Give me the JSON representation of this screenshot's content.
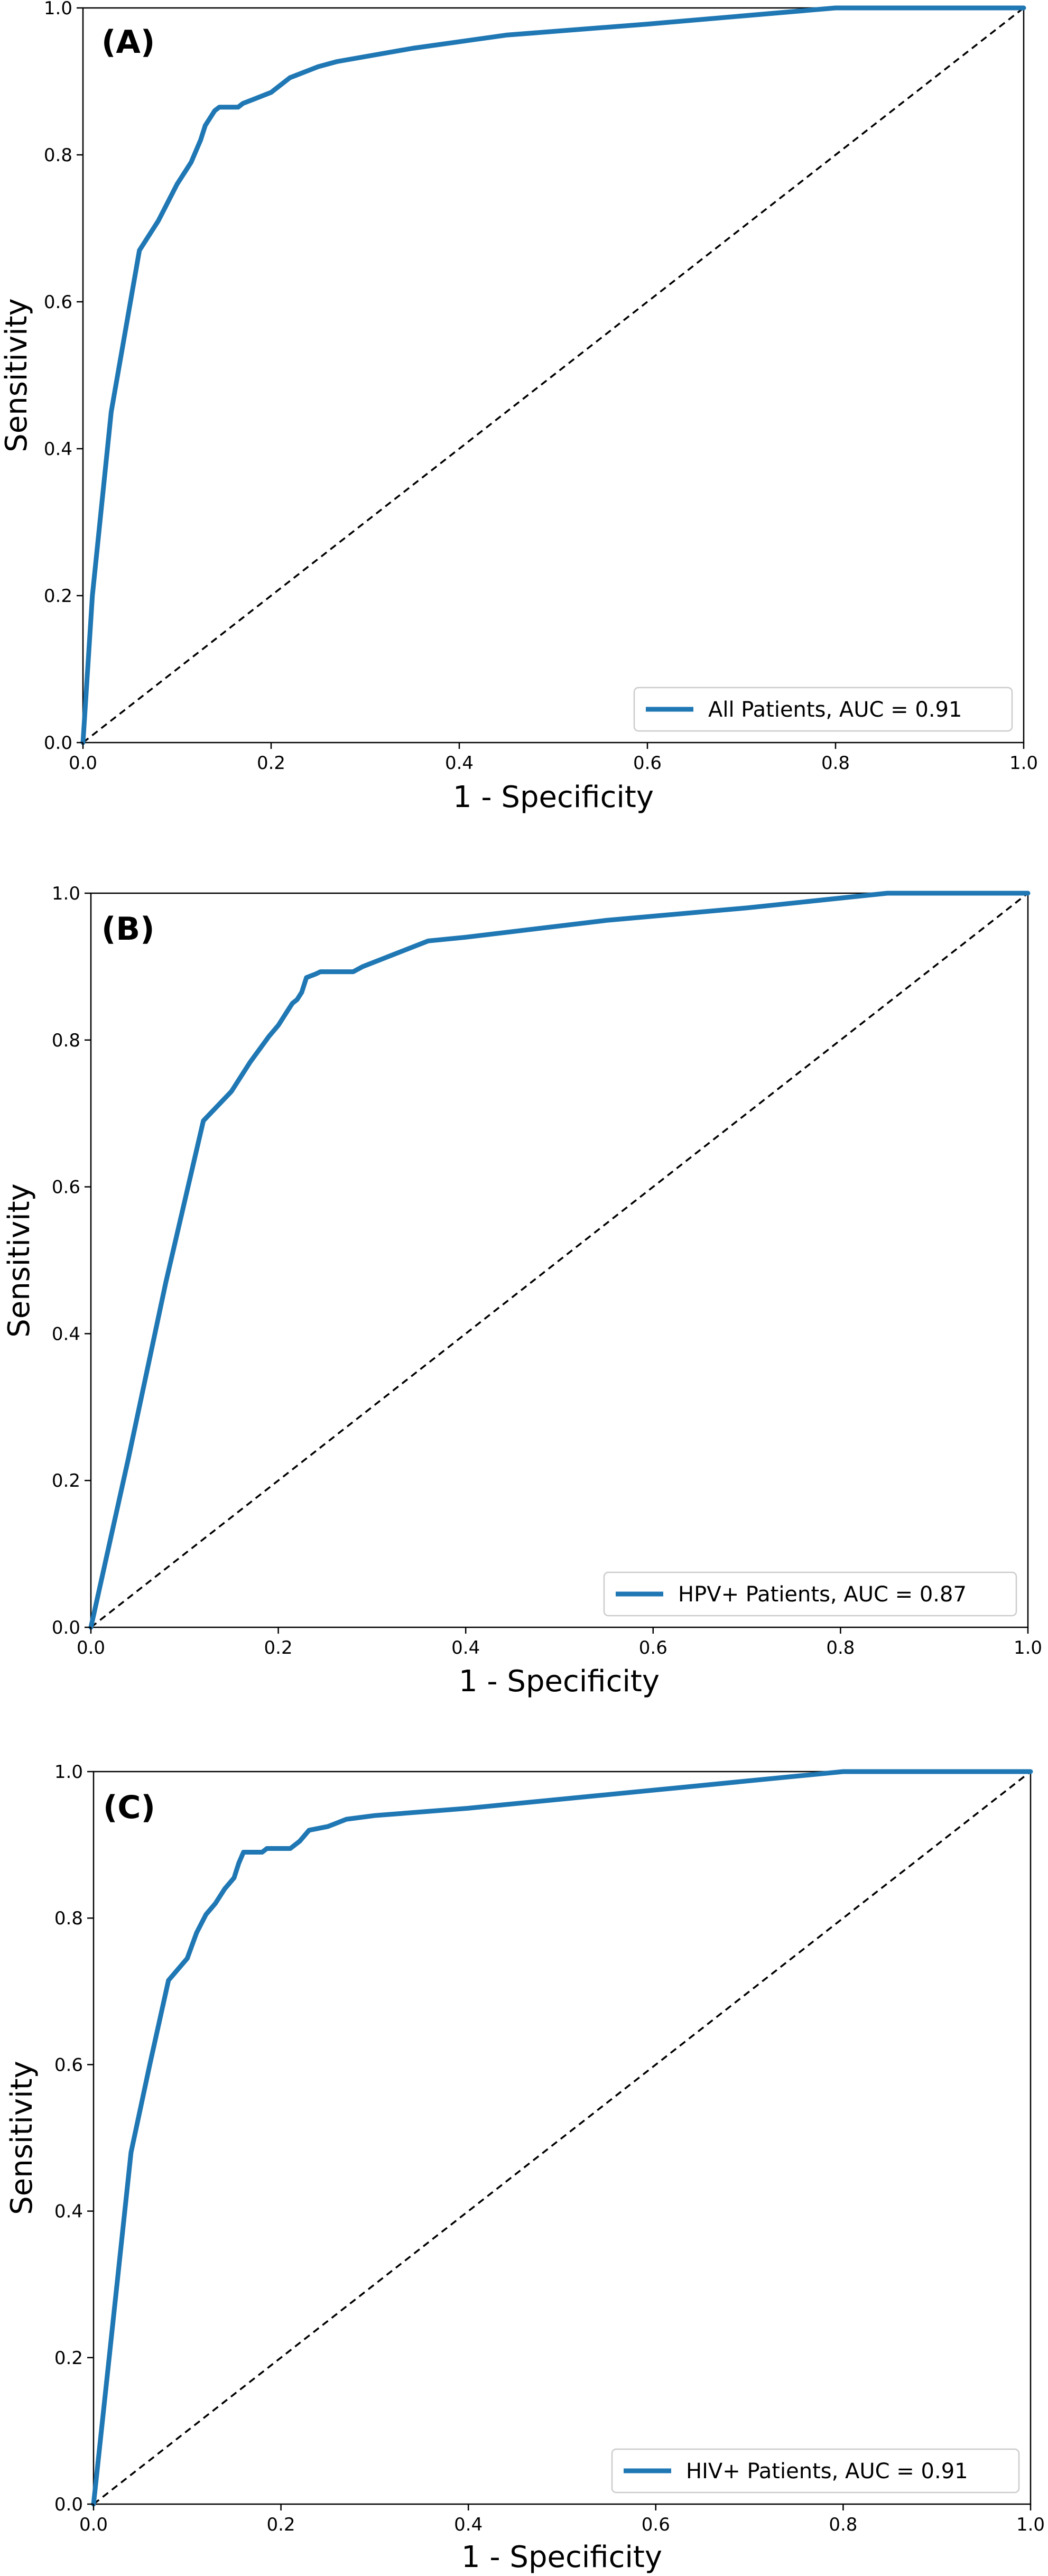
{
  "chart_data": [
    {
      "type": "line",
      "panel_label": "(A)",
      "xlabel": "1 - Specificity",
      "ylabel": "Sensitivity",
      "xlim": [
        0.0,
        1.0
      ],
      "ylim": [
        0.0,
        1.0
      ],
      "xticks": [
        "0.0",
        "0.2",
        "0.4",
        "0.6",
        "0.8",
        "1.0"
      ],
      "yticks": [
        "0.0",
        "0.2",
        "0.4",
        "0.6",
        "0.8",
        "1.0"
      ],
      "grid": false,
      "legend_position": "bottom-right",
      "series": [
        {
          "name": "All Patients, AUC = 0.91",
          "color": "#1f77b4",
          "x": [
            0.0,
            0.01,
            0.03,
            0.06,
            0.08,
            0.1,
            0.115,
            0.125,
            0.13,
            0.135,
            0.14,
            0.145,
            0.165,
            0.17,
            0.18,
            0.2,
            0.22,
            0.25,
            0.27,
            0.35,
            0.45,
            0.6,
            0.8,
            1.0
          ],
          "y": [
            0.0,
            0.2,
            0.45,
            0.67,
            0.71,
            0.76,
            0.79,
            0.82,
            0.84,
            0.85,
            0.86,
            0.865,
            0.865,
            0.87,
            0.875,
            0.885,
            0.905,
            0.92,
            0.927,
            0.945,
            0.963,
            0.978,
            1.0,
            1.0
          ]
        },
        {
          "name": "",
          "color": "#000000",
          "dashed": true,
          "x": [
            0.0,
            1.0
          ],
          "y": [
            0.0,
            1.0
          ]
        }
      ]
    },
    {
      "type": "line",
      "panel_label": "(B)",
      "xlabel": "1 - Specificity",
      "ylabel": "Sensitivity",
      "xlim": [
        0.0,
        1.0
      ],
      "ylim": [
        0.0,
        1.0
      ],
      "xticks": [
        "0.0",
        "0.2",
        "0.4",
        "0.6",
        "0.8",
        "1.0"
      ],
      "yticks": [
        "0.0",
        "0.2",
        "0.4",
        "0.6",
        "0.8",
        "1.0"
      ],
      "grid": false,
      "legend_position": "bottom-right",
      "series": [
        {
          "name": "HPV+ Patients, AUC = 0.87",
          "color": "#1f77b4",
          "x": [
            0.0,
            0.04,
            0.08,
            0.12,
            0.15,
            0.17,
            0.19,
            0.2,
            0.21,
            0.215,
            0.22,
            0.225,
            0.23,
            0.24,
            0.245,
            0.28,
            0.29,
            0.32,
            0.34,
            0.36,
            0.4,
            0.55,
            0.7,
            0.85,
            1.0
          ],
          "y": [
            0.0,
            0.23,
            0.47,
            0.69,
            0.73,
            0.77,
            0.805,
            0.82,
            0.84,
            0.85,
            0.855,
            0.865,
            0.885,
            0.89,
            0.893,
            0.893,
            0.9,
            0.915,
            0.925,
            0.935,
            0.94,
            0.963,
            0.98,
            1.0,
            1.0
          ]
        },
        {
          "name": "",
          "color": "#000000",
          "dashed": true,
          "x": [
            0.0,
            1.0
          ],
          "y": [
            0.0,
            1.0
          ]
        }
      ]
    },
    {
      "type": "line",
      "panel_label": "(C)",
      "xlabel": "1 - Specificity",
      "ylabel": "Sensitivity",
      "xlim": [
        0.0,
        1.0
      ],
      "ylim": [
        0.0,
        1.0
      ],
      "xticks": [
        "0.0",
        "0.2",
        "0.4",
        "0.6",
        "0.8",
        "1.0"
      ],
      "yticks": [
        "0.0",
        "0.2",
        "0.4",
        "0.6",
        "0.8",
        "1.0"
      ],
      "grid": false,
      "legend_position": "bottom-right",
      "series": [
        {
          "name": "HIV+ Patients, AUC = 0.91",
          "color": "#1f77b4",
          "x": [
            0.0,
            0.02,
            0.04,
            0.06,
            0.08,
            0.1,
            0.11,
            0.12,
            0.13,
            0.14,
            0.15,
            0.155,
            0.16,
            0.18,
            0.185,
            0.21,
            0.22,
            0.23,
            0.25,
            0.27,
            0.3,
            0.4,
            0.6,
            0.8,
            1.0
          ],
          "y": [
            0.0,
            0.24,
            0.48,
            0.6,
            0.715,
            0.745,
            0.78,
            0.805,
            0.82,
            0.84,
            0.855,
            0.875,
            0.89,
            0.89,
            0.895,
            0.895,
            0.905,
            0.92,
            0.925,
            0.935,
            0.94,
            0.95,
            0.975,
            1.0,
            1.0
          ]
        },
        {
          "name": "",
          "color": "#000000",
          "dashed": true,
          "x": [
            0.0,
            1.0
          ],
          "y": [
            0.0,
            1.0
          ]
        }
      ]
    }
  ]
}
